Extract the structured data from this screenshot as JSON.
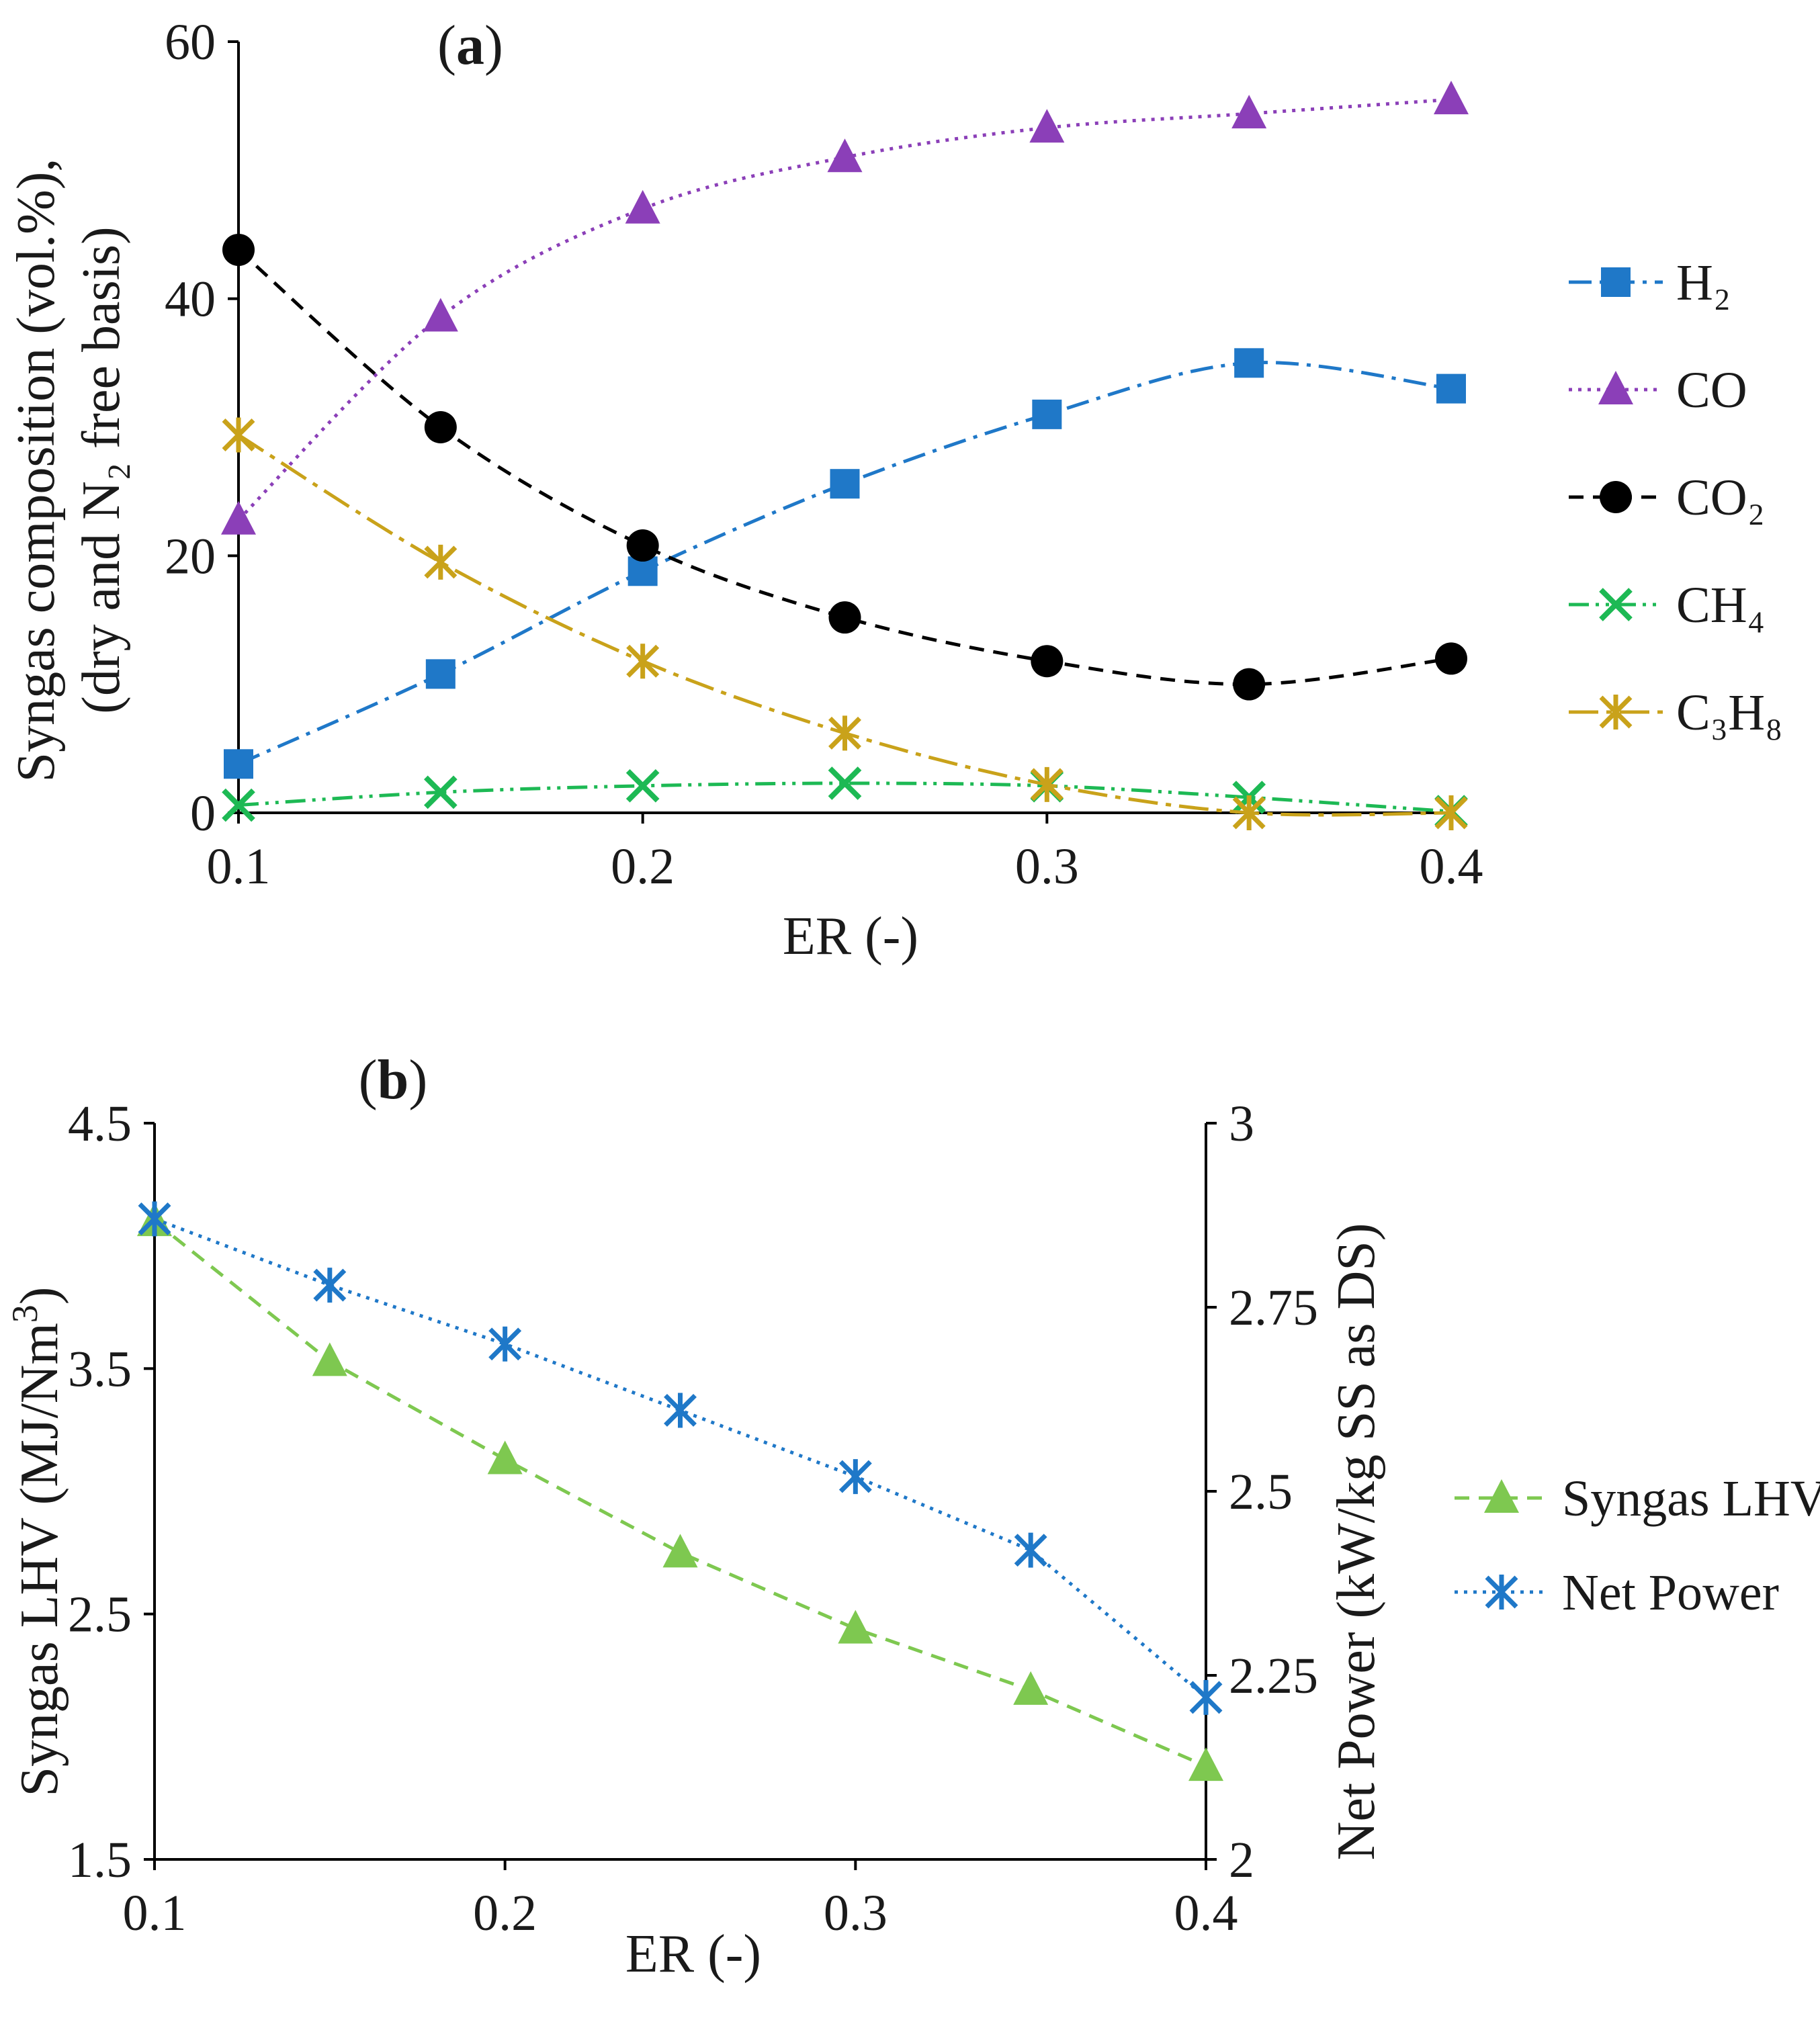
{
  "chart_data": [
    {
      "type": "line",
      "panel_label": {
        "open": "(",
        "letter": "a",
        "close": ")"
      },
      "title": "(a)",
      "xlabel": "ER (-)",
      "ylabel_line1": "Syngas composition (vol.%),",
      "ylabel_line2": "(dry and N₂ free basis)",
      "xlim": [
        0.1,
        0.4
      ],
      "ylim": [
        0,
        60
      ],
      "xticks": [
        "0.1",
        "0.2",
        "0.3",
        "0.4"
      ],
      "yticks": [
        "0",
        "20",
        "40",
        "60"
      ],
      "x": [
        0.1,
        0.15,
        0.2,
        0.25,
        0.3,
        0.35,
        0.4
      ],
      "legend_position": "right",
      "series": [
        {
          "name": "H₂",
          "values": [
            3.8,
            10.8,
            18.8,
            25.6,
            31.0,
            35.0,
            33.0
          ],
          "color": "#1f78c8",
          "marker": "square",
          "dash": "dashdot"
        },
        {
          "name": "CO",
          "values": [
            22.8,
            38.6,
            47.0,
            51.0,
            53.3,
            54.4,
            55.5
          ],
          "color": "#8b3fb8",
          "marker": "triangle",
          "dash": "dotted"
        },
        {
          "name": "CO₂",
          "values": [
            43.8,
            30.0,
            20.8,
            15.2,
            11.8,
            10.0,
            12.0
          ],
          "color": "#000000",
          "marker": "circle",
          "dash": "dashed"
        },
        {
          "name": "CH₄",
          "values": [
            0.6,
            1.6,
            2.1,
            2.3,
            2.1,
            1.2,
            0.1
          ],
          "color": "#1db954",
          "marker": "x",
          "dash": "dashdotdot"
        },
        {
          "name": "C₃H₈",
          "values": [
            29.4,
            19.5,
            11.8,
            6.2,
            2.2,
            0.0,
            0.0
          ],
          "color": "#c9a21a",
          "marker": "asterisk",
          "dash": "longdashdot"
        }
      ]
    },
    {
      "type": "line",
      "panel_label": {
        "open": "(",
        "letter": "b",
        "close": ")"
      },
      "title": "(b)",
      "xlabel": "ER (-)",
      "ylabel_left": "Syngas LHV  (MJ/Nm",
      "ylabel_left_sup": "3",
      "ylabel_left_close": ")",
      "ylabel_right": "Net Power (kW/kg SS as DS)",
      "xlim": [
        0.1,
        0.4
      ],
      "ylim_left": [
        1.5,
        4.5
      ],
      "ylim_right": [
        2,
        3
      ],
      "xticks": [
        "0.1",
        "0.2",
        "0.3",
        "0.4"
      ],
      "yticks_left": [
        "1.5",
        "2.5",
        "3.5",
        "4.5"
      ],
      "yticks_right": [
        "2",
        "2.25",
        "2.5",
        "2.75",
        "3"
      ],
      "x": [
        0.1,
        0.15,
        0.2,
        0.25,
        0.3,
        0.35,
        0.4
      ],
      "legend_position": "right",
      "series": [
        {
          "name": "Syngas LHV",
          "axis": "left",
          "values": [
            4.1,
            3.53,
            3.13,
            2.75,
            2.44,
            2.19,
            1.88
          ],
          "color": "#7ec850",
          "marker": "triangle",
          "dash": "dashed"
        },
        {
          "name": "Net Power",
          "axis": "right",
          "values": [
            2.87,
            2.78,
            2.7,
            2.61,
            2.52,
            2.42,
            2.22
          ],
          "color": "#1f78c8",
          "marker": "asterisk",
          "dash": "dotted"
        }
      ]
    }
  ]
}
